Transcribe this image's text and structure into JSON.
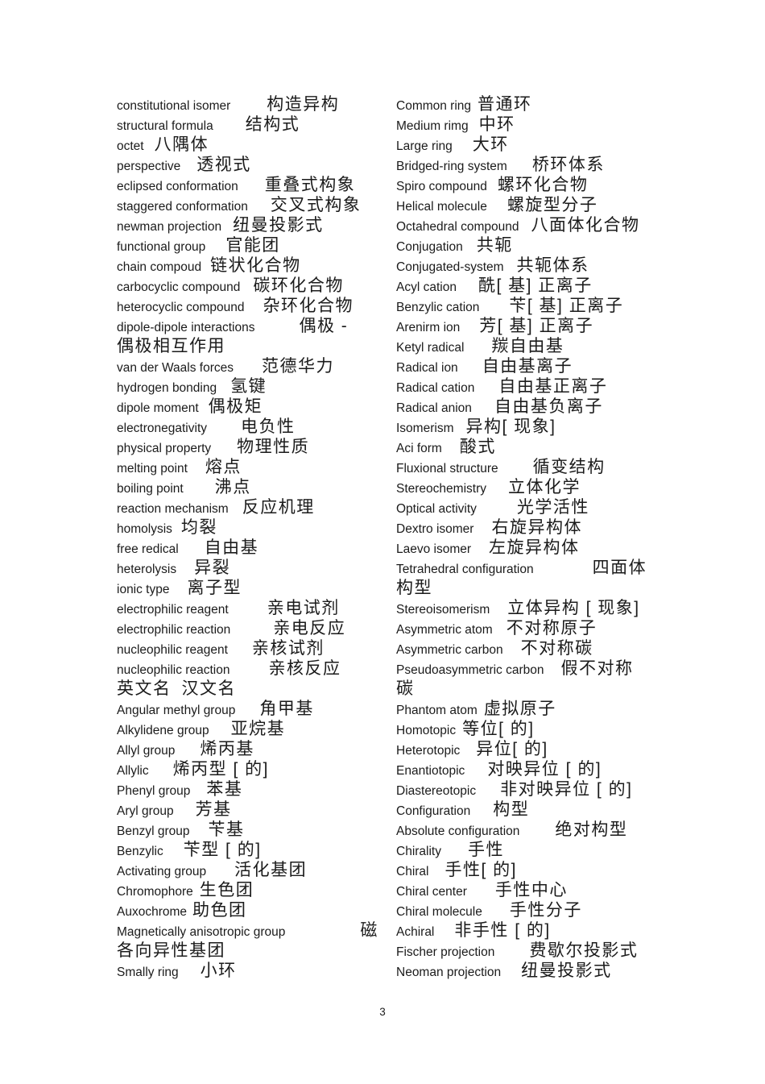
{
  "page": {
    "number": "3",
    "background_color": "#ffffff",
    "text_color": "#1b1b1b"
  },
  "glossary": {
    "left_column": [
      {
        "en": "constitutional isomer",
        "zh": "构造异构",
        "g": 45
      },
      {
        "en": "structural formula",
        "zh": "结构式",
        "g": 40
      },
      {
        "en": "octet",
        "zh": "八隅体",
        "g": 13
      },
      {
        "en": "perspective",
        "zh": "透视式",
        "g": 20
      },
      {
        "en": "eclipsed conformation",
        "zh": "重叠式构象",
        "g": 33
      },
      {
        "en": "staggered conformation",
        "zh": "交叉式构象",
        "g": 28
      },
      {
        "en": "newman projection",
        "zh": "纽曼投影式",
        "g": 14
      },
      {
        "en": "functional group",
        "zh": "官能团",
        "g": 25
      },
      {
        "en": "chain compoud",
        "zh": "链状化合物",
        "g": 11
      },
      {
        "en": "carbocyclic compound",
        "zh": "碳环化合物",
        "g": 16
      },
      {
        "en": "heterocyclic compound",
        "zh": "杂环化合物",
        "g": 23
      },
      {
        "en": "dipole-dipole interactions",
        "zh": "偶极 -",
        "g": 55,
        "wrap": "偶极相互作用"
      },
      {
        "en": "van der Waals forces",
        "zh": "范德华力",
        "g": 35
      },
      {
        "en": "hydrogen bonding",
        "zh": "氢键",
        "g": 17
      },
      {
        "en": "dipole moment",
        "zh": "偶极矩",
        "g": 12
      },
      {
        "en": "electronegativity",
        "zh": "电负性",
        "g": 42
      },
      {
        "en": "physical property",
        "zh": "物理性质",
        "g": 32
      },
      {
        "en": "melting point",
        "zh": "熔点",
        "g": 22
      },
      {
        "en": "boiling point",
        "zh": "沸点",
        "g": 39
      },
      {
        "en": "reaction mechanism",
        "zh": "反应机理",
        "g": 17
      },
      {
        "en": "homolysis",
        "zh": "均裂",
        "g": 11
      },
      {
        "en": "free redical",
        "zh": "自由基",
        "g": 32
      },
      {
        "en": "heterolysis",
        "zh": "异裂",
        "g": 22
      },
      {
        "en": "ionic type",
        "zh": "离子型",
        "g": 22
      },
      {
        "en": "electrophilic reagent",
        "zh": "亲电试剂",
        "g": 48
      },
      {
        "en": "electrophilic reaction",
        "zh": "亲电反应",
        "g": 53
      },
      {
        "en": "nucleophilic reagent",
        "zh": "亲核试剂",
        "g": 30
      },
      {
        "en": "nucleophilic reaction",
        "zh": "亲核反应",
        "g": 48
      },
      {
        "en": "英文名",
        "zh": "汉文名",
        "g": 13,
        "cjk_en": true
      },
      {
        "en": "Angular methyl group",
        "zh": "角甲基",
        "g": 30
      },
      {
        "en": "Alkylidene group",
        "zh": "亚烷基",
        "g": 27
      },
      {
        "en": "Allyl group",
        "zh": "烯丙基",
        "g": 31
      },
      {
        "en": "Allylic",
        "zh": "烯丙型 [ 的]",
        "g": 30
      },
      {
        "en": "Phenyl group",
        "zh": "苯基",
        "g": 20
      },
      {
        "en": "Aryl group",
        "zh": "芳基",
        "g": 27
      },
      {
        "en": "Benzyl group",
        "zh": "苄基",
        "g": 23
      },
      {
        "en": "Benzylic",
        "zh": "苄型 [ 的]",
        "g": 25
      },
      {
        "en": "Activating group",
        "zh": "活化基团",
        "g": 35
      },
      {
        "en": "Chromophore",
        "zh": "生色团",
        "g": 8
      },
      {
        "en": "Auxochrome",
        "zh": "助色团",
        "g": 7
      },
      {
        "en": "Magnetically anisotropic group",
        "zh": "磁",
        "g": 93,
        "wrap": "各向异性基团"
      },
      {
        "en": "Smally ring",
        "zh": "小环",
        "g": 27
      }
    ],
    "right_column": [
      {
        "en": "Common ring",
        "zh": "普通环",
        "g": 8
      },
      {
        "en": "Medium rimg",
        "zh": "中环",
        "g": 13
      },
      {
        "en": "Large ring",
        "zh": "大环",
        "g": 25
      },
      {
        "en": "Bridged-ring system",
        "zh": "桥环体系",
        "g": 31
      },
      {
        "en": "Spiro compound",
        "zh": "螺环化合物",
        "g": 13
      },
      {
        "en": "Helical molecule",
        "zh": "螺旋型分子",
        "g": 25
      },
      {
        "en": "Octahedral compound",
        "zh": "八面体化合物",
        "g": 15
      },
      {
        "en": "Conjugation",
        "zh": "共轭",
        "g": 17
      },
      {
        "en": "Conjugated-system",
        "zh": "共轭体系",
        "g": 16
      },
      {
        "en": "Acyl cation",
        "zh": "酰[ 基] 正离子",
        "g": 27
      },
      {
        "en": "Benzylic cation",
        "zh": "苄[ 基] 正离子",
        "g": 37
      },
      {
        "en": "Arenirm ion",
        "zh": "芳[ 基] 正离子",
        "g": 24
      },
      {
        "en": "Ketyl radical",
        "zh": "羰自由基",
        "g": 34
      },
      {
        "en": "Radical ion",
        "zh": "自由基离子",
        "g": 30
      },
      {
        "en": "Radical cation",
        "zh": "自由基正离子",
        "g": 30
      },
      {
        "en": "Radical anion",
        "zh": "自由基负离子",
        "g": 28
      },
      {
        "en": "Isomerism",
        "zh": "异构[ 现象]",
        "g": 15
      },
      {
        "en": "Aci form",
        "zh": "酸式",
        "g": 22
      },
      {
        "en": "Fluxional structure",
        "zh": "循变结构",
        "g": 43
      },
      {
        "en": "Stereochemistry",
        "zh": "立体化学",
        "g": 27
      },
      {
        "en": "Optical activity",
        "zh": "光学活性",
        "g": 50
      },
      {
        "en": "Dextro isomer",
        "zh": "右旋异构体",
        "g": 22
      },
      {
        "en": "Laevo isomer",
        "zh": "左旋异构体",
        "g": 22
      },
      {
        "en": "Tetrahedral configuration",
        "zh": "四面体",
        "g": 73,
        "wrap": "构型"
      },
      {
        "en": "Stereoisomerism",
        "zh": "立体异构 [ 现象]",
        "g": 22
      },
      {
        "en": "Asymmetric atom",
        "zh": "不对称原子",
        "g": 17
      },
      {
        "en": "Asymmetric carbon",
        "zh": "不对称碳",
        "g": 22
      },
      {
        "en": "Pseudoasymmetric carbon",
        "zh": "假不对称",
        "g": 21,
        "wrap": "碳"
      },
      {
        "en": "Phantom atom",
        "zh": "虚拟原子",
        "g": 8
      },
      {
        "en": "Homotopic",
        "zh": "等位[ 的]",
        "g": 8
      },
      {
        "en": "Heterotopic",
        "zh": "异位[ 的]",
        "g": 20
      },
      {
        "en": "Enantiotopic",
        "zh": "对映异位 [ 的]",
        "g": 28
      },
      {
        "en": "Diastereotopic",
        "zh": "非对映异位 [ 的]",
        "g": 30
      },
      {
        "en": "Configuration",
        "zh": "构型",
        "g": 28
      },
      {
        "en": "Absolute configuration",
        "zh": "绝对构型",
        "g": 44
      },
      {
        "en": "Chirality",
        "zh": "手性",
        "g": 33
      },
      {
        "en": "Chiral",
        "zh": "手性[ 的]",
        "g": 20
      },
      {
        "en": "Chiral center",
        "zh": "手性中心",
        "g": 35
      },
      {
        "en": "Chiral molecule",
        "zh": "手性分子",
        "g": 34
      },
      {
        "en": "Achiral",
        "zh": "非手性 [ 的]",
        "g": 25
      },
      {
        "en": "Fischer projection",
        "zh": "费歇尔投影式",
        "g": 43
      },
      {
        "en": "Neoman projection",
        "zh": "纽曼投影式",
        "g": 25
      }
    ]
  }
}
